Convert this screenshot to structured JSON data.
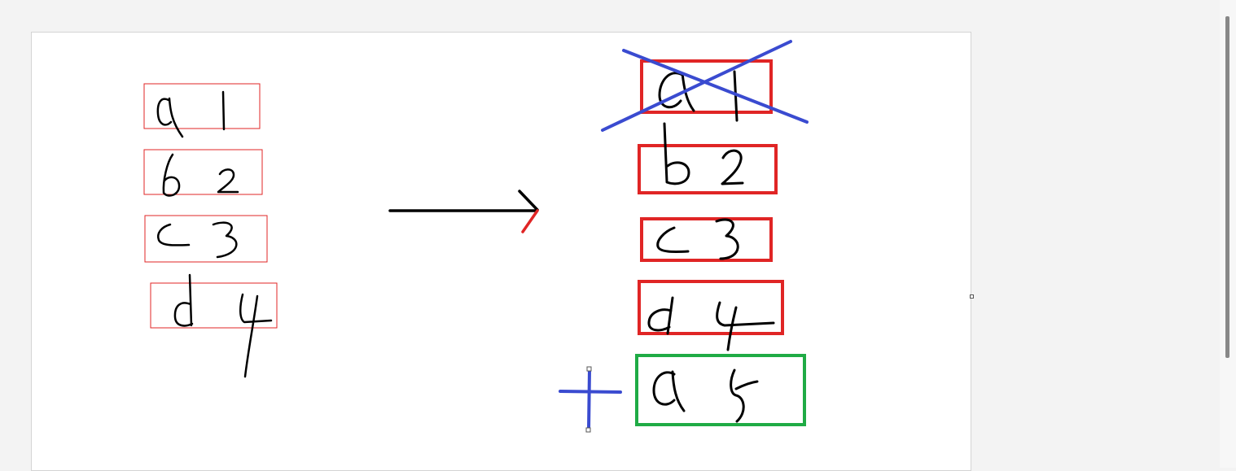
{
  "colors": {
    "background": "#f3f3f3",
    "canvas": "#ffffff",
    "ink": "#000000",
    "left_box_border": "#e02525",
    "right_box_border": "#e02525",
    "added_box_border": "#1fab45",
    "strike_mark": "#3a4bd0",
    "plus_mark": "#3a4bd0",
    "arrow_tip": "#e02525"
  },
  "diagram": {
    "left_table": {
      "rows": [
        {
          "key": "a",
          "value": "1"
        },
        {
          "key": "b",
          "value": "2"
        },
        {
          "key": "c",
          "value": "3"
        },
        {
          "key": "d",
          "value": "4"
        }
      ]
    },
    "transform_arrow": "right-arrow",
    "right_table": {
      "rows": [
        {
          "key": "a",
          "value": "1",
          "status": "removed"
        },
        {
          "key": "b",
          "value": "2",
          "status": "kept"
        },
        {
          "key": "c",
          "value": "3",
          "status": "kept"
        },
        {
          "key": "d",
          "value": "4",
          "status": "kept"
        },
        {
          "key": "a",
          "value": "5",
          "status": "added"
        }
      ]
    },
    "removed_marker": "blue-cross-icon",
    "added_marker": "blue-plus-icon"
  }
}
